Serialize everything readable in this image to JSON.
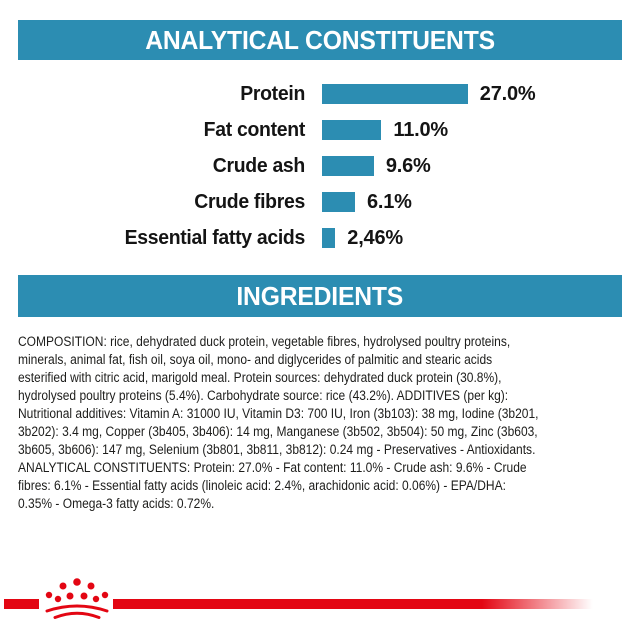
{
  "colors": {
    "accent_teal": "#2c8db2",
    "brand_red": "#e30613",
    "text": "#1d1d1b",
    "banner_text": "#ffffff",
    "background": "#ffffff"
  },
  "analytical_banner": {
    "title": "ANALYTICAL CONSTITUENTS"
  },
  "ingredients_banner": {
    "title": "INGREDIENTS"
  },
  "chart_data": {
    "type": "bar",
    "orientation": "horizontal",
    "title": "ANALYTICAL CONSTITUENTS",
    "categories": [
      "Protein",
      "Fat content",
      "Crude ash",
      "Crude fibres",
      "Essential fatty acids"
    ],
    "values": [
      27.0,
      11.0,
      9.6,
      6.1,
      2.46
    ],
    "value_labels": [
      "27.0%",
      "11.0%",
      "9.6%",
      "6.1%",
      "2,46%"
    ],
    "unit": "%",
    "xlim": [
      0,
      30
    ],
    "grid": false,
    "bar_color": "#2c8db2",
    "legend": "none"
  },
  "composition": {
    "lines": [
      "COMPOSITION: rice, dehydrated duck protein, vegetable fibres, hydrolysed poultry proteins,",
      "minerals, animal fat, fish oil, soya oil, mono- and diglycerides of palmitic and stearic acids",
      "esterified with citric acid, marigold meal. Protein sources: dehydrated duck protein (30.8%),",
      "hydrolysed poultry proteins (5.4%). Carbohydrate source: rice (43.2%). ADDITIVES (per kg):",
      "Nutritional additives: Vitamin A: 31000 IU, Vitamin D3: 700 IU, Iron (3b103): 38 mg, Iodine (3b201,",
      "3b202): 3.4 mg, Copper (3b405, 3b406): 14 mg, Manganese (3b502, 3b504): 50 mg, Zinc (3b603,",
      "3b605, 3b606): 147 mg, Selenium (3b801, 3b811, 3b812): 0.24 mg - Preservatives - Antioxidants.",
      "ANALYTICAL CONSTITUENTS: Protein: 27.0% - Fat content: 11.0% - Crude ash: 9.6% - Crude",
      "fibres: 6.1% - Essential fatty acids (linoleic acid: 2.4%, arachidonic acid: 0.06%) - EPA/DHA:",
      "0.35% - Omega-3 fatty acids: 0.72%."
    ]
  },
  "footer": {
    "logo": "royal-canin-crown"
  }
}
